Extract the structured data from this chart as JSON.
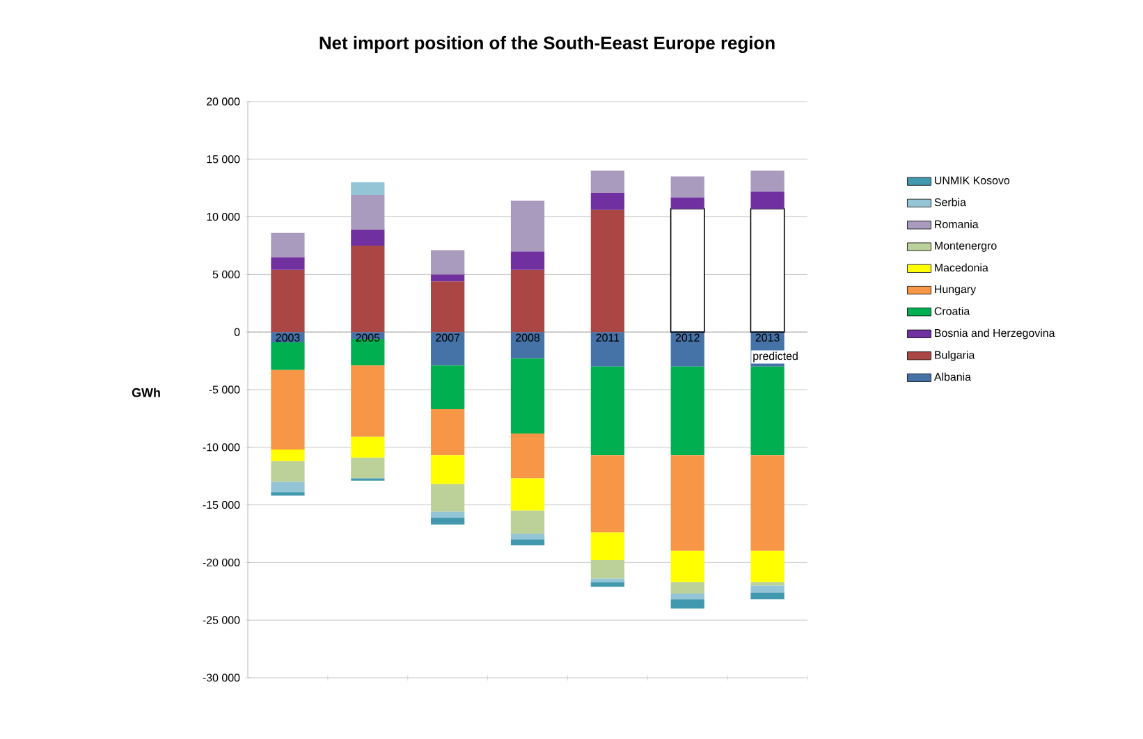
{
  "chart_data": {
    "type": "bar",
    "stacked": true,
    "title": "Net import position of the South-Eeast Europe region",
    "ylabel": "GWh",
    "categories": [
      "2003",
      "2005",
      "2007",
      "2008",
      "2011",
      "2012",
      "2013"
    ],
    "annotations": [
      "predicted"
    ],
    "series": [
      {
        "name": "Albania",
        "color": "#4572a7",
        "values": [
          -900,
          -600,
          -2900,
          -2300,
          -3000,
          -3000,
          -3000
        ]
      },
      {
        "name": "Bulgaria",
        "color": "#aa4643",
        "colors": [
          "#aa4643",
          "#aa4643",
          "#aa4643",
          "#aa4643",
          "#aa4643",
          "#ffffff",
          "#ffffff"
        ],
        "values": [
          5400,
          7500,
          4400,
          5400,
          10600,
          10700,
          10700
        ]
      },
      {
        "name": "Bosnia and Herzegovina",
        "color": "#7030a0",
        "values": [
          1100,
          1400,
          600,
          1600,
          1500,
          1000,
          1500
        ]
      },
      {
        "name": "Croatia",
        "color": "#00b050",
        "values": [
          -2400,
          -2300,
          -3800,
          -6500,
          -7700,
          -7700,
          -7700
        ]
      },
      {
        "name": "Hungary",
        "color": "#f79646",
        "values": [
          -6900,
          -6200,
          -4000,
          -3900,
          -6700,
          -8300,
          -8300
        ]
      },
      {
        "name": "Macedonia",
        "color": "#ffff00",
        "values": [
          -1000,
          -1800,
          -2500,
          -2800,
          -2400,
          -2700,
          -2700
        ]
      },
      {
        "name": "Montenergro",
        "color": "#bcd09a",
        "values": [
          -1800,
          -1800,
          -2400,
          -2000,
          -1600,
          -1000,
          -300
        ]
      },
      {
        "name": "Romania",
        "color": "#a99bbd",
        "values": [
          2100,
          3000,
          2100,
          4400,
          1900,
          1800,
          1800
        ]
      },
      {
        "name": "Serbia",
        "color": "#93c5d6",
        "values": [
          -900,
          1100,
          -500,
          -500,
          -300,
          -500,
          -600
        ]
      },
      {
        "name": "UNMIK Kosovo",
        "color": "#4198af",
        "values": [
          -300,
          -200,
          -600,
          -500,
          -400,
          -800,
          -600
        ]
      }
    ],
    "ylim": [
      -30000,
      20000
    ],
    "yticks": [
      {
        "value": -30000,
        "label": "-30 000"
      },
      {
        "value": -25000,
        "label": "-25 000"
      },
      {
        "value": -20000,
        "label": "-20 000"
      },
      {
        "value": -15000,
        "label": "-15 000"
      },
      {
        "value": -10000,
        "label": "-10 000"
      },
      {
        "value": -5000,
        "label": "-5 000"
      },
      0,
      {
        "value": 5000,
        "label": "5 000"
      },
      {
        "value": 10000,
        "label": "10 000"
      },
      {
        "value": 15000,
        "label": "15 000"
      },
      {
        "value": 20000,
        "label": "20 000"
      }
    ],
    "grid": "y",
    "legend": "right"
  }
}
